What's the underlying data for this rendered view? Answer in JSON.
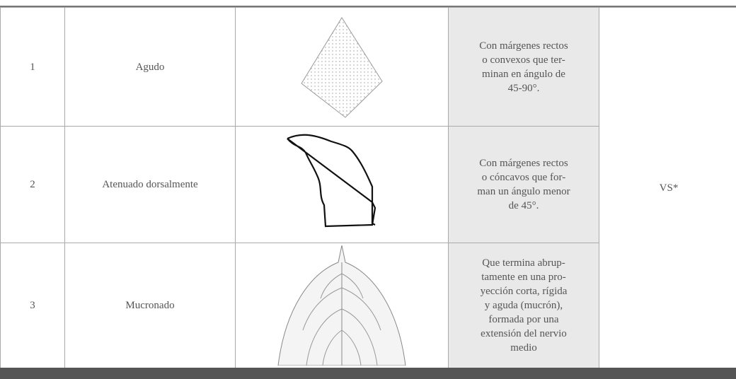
{
  "table": {
    "rows": [
      {
        "number": "1",
        "name": "Agudo",
        "description_lines": [
          "Con márgenes rectos",
          "o convexos que ter-",
          "minan en ángulo de",
          "45-90°."
        ]
      },
      {
        "number": "2",
        "name": "Atenuado dorsalmente",
        "description_lines": [
          "Con márgenes rectos",
          "o cóncavos que for-",
          "man un ángulo menor",
          "de 45°."
        ]
      },
      {
        "number": "3",
        "name": "Mucronado",
        "description_lines": [
          "Que termina abrup-",
          "tamente en una pro-",
          "yección corta, rígida",
          "y aguda (mucrón),",
          "formada por una",
          "extensión del nervio",
          "medio"
        ]
      }
    ],
    "code": "VS*"
  }
}
